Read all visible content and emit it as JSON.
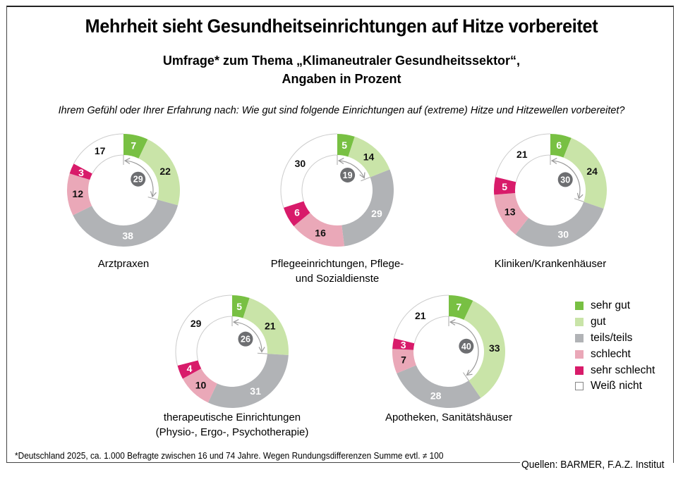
{
  "header": {
    "title": "Mehrheit sieht Gesundheitseinrichtungen auf Hitze vorbereitet",
    "subtitle_line1": "Umfrage* zum Thema „Klimaneutraler Gesundheitssektor“,",
    "subtitle_line2": "Angaben in Prozent",
    "question": "Ihrem Gefühl oder Ihrer Erfahrung nach: Wie gut sind folgende Einrichtungen auf (extreme) Hitze und Hitzewellen vorbereitet?"
  },
  "legend": [
    {
      "label": "sehr gut",
      "color": "#78c043"
    },
    {
      "label": "gut",
      "color": "#c9e4a8"
    },
    {
      "label": "teils/teils",
      "color": "#b1b3b6"
    },
    {
      "label": "schlecht",
      "color": "#eaa8b8"
    },
    {
      "label": "sehr schlecht",
      "color": "#d81b6a"
    },
    {
      "label": "Weiß nicht",
      "color": "#ffffff"
    }
  ],
  "chart_data": {
    "type": "pie",
    "variant": "donut",
    "categories": [
      "sehr gut",
      "gut",
      "teils/teils",
      "schlecht",
      "sehr schlecht",
      "Weiß nicht"
    ],
    "colors": [
      "#78c043",
      "#c9e4a8",
      "#b1b3b6",
      "#eaa8b8",
      "#d81b6a",
      "#ffffff"
    ],
    "charts": [
      {
        "name": "Arztpraxen",
        "label_lines": [
          "Arztpraxen"
        ],
        "values": [
          7,
          22,
          38,
          12,
          3,
          17
        ],
        "total_good": 29
      },
      {
        "name": "Pflegeeinrichtungen, Pflege- und Sozialdienste",
        "label_lines": [
          "Pflegeeinrichtungen, Pflege-",
          "und Sozialdienste"
        ],
        "values": [
          5,
          14,
          29,
          16,
          6,
          30
        ],
        "total_good": 19
      },
      {
        "name": "Kliniken/Krankenhäuser",
        "label_lines": [
          "Kliniken/Krankenhäuser"
        ],
        "values": [
          6,
          24,
          30,
          13,
          5,
          21
        ],
        "total_good": 30
      },
      {
        "name": "therapeutische Einrichtungen (Physio-, Ergo-, Psychotherapie)",
        "label_lines": [
          "therapeutische Einrichtungen",
          "(Physio-, Ergo-, Psychotherapie)"
        ],
        "values": [
          5,
          21,
          31,
          10,
          4,
          29
        ],
        "total_good": 26
      },
      {
        "name": "Apotheken, Sanitätshäuser",
        "label_lines": [
          "Apotheken, Sanitätshäuser"
        ],
        "values": [
          7,
          33,
          28,
          7,
          3,
          21
        ],
        "total_good": 40
      }
    ]
  },
  "footer": {
    "footnote": "*Deutschland 2025, ca. 1.000 Befragte zwischen 16 und 74 Jahre. Wegen Rundungsdifferenzen Summe evtl. ≠ 100",
    "source": "Quellen: BARMER, F.A.Z. Institut"
  }
}
